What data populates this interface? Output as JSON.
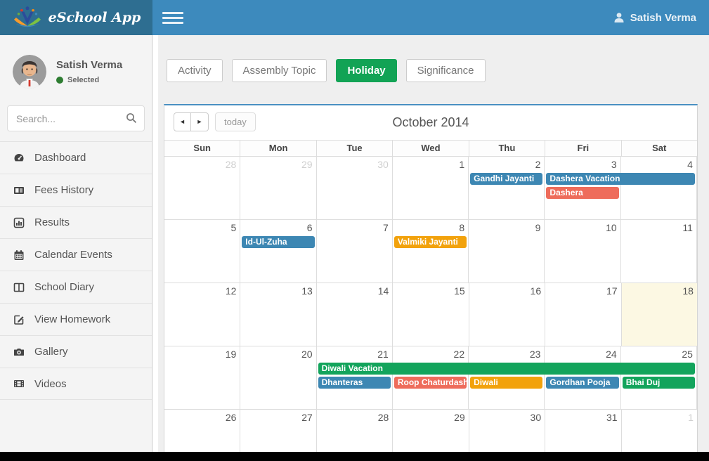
{
  "header": {
    "app_title": "eSchool App",
    "user_name": "Satish Verma"
  },
  "sidebar": {
    "profile": {
      "name": "Satish Verma",
      "status": "Selected"
    },
    "search_placeholder": "Search...",
    "menu": [
      {
        "label": "Dashboard"
      },
      {
        "label": "Fees History"
      },
      {
        "label": "Results"
      },
      {
        "label": "Calendar Events"
      },
      {
        "label": "School Diary"
      },
      {
        "label": "View Homework"
      },
      {
        "label": "Gallery"
      },
      {
        "label": "Videos"
      }
    ]
  },
  "tabs": [
    {
      "label": "Activity",
      "active": false
    },
    {
      "label": "Assembly Topic",
      "active": false
    },
    {
      "label": "Holiday",
      "active": true
    },
    {
      "label": "Significance",
      "active": false
    }
  ],
  "colors": {
    "header_left": "#2E6E91",
    "header_right": "#3D8ABD",
    "active_tab_green": "#12A355",
    "panel_top_border": "#4A90C2",
    "today_cell": "#FCF8E3"
  },
  "calendar": {
    "title": "October 2014",
    "toolbar": {
      "prev_symbol": "◄",
      "next_symbol": "►",
      "today_label": "today"
    },
    "day_headers": [
      "Sun",
      "Mon",
      "Tue",
      "Wed",
      "Thu",
      "Fri",
      "Sat"
    ],
    "event_colors": {
      "blue": "#3D87B3",
      "red": "#EE6C5B",
      "orange": "#F2A20C",
      "green": "#13A45C"
    },
    "today_cell": {
      "week": 2,
      "col": 6,
      "date": "18"
    },
    "weeks": [
      {
        "days": [
          {
            "n": "28",
            "muted": true
          },
          {
            "n": "29",
            "muted": true
          },
          {
            "n": "30",
            "muted": true
          },
          {
            "n": "1"
          },
          {
            "n": "2"
          },
          {
            "n": "3"
          },
          {
            "n": "4"
          }
        ],
        "event_rows": [
          [
            {
              "label": "Gandhi Jayanti",
              "col": 4,
              "span": 1,
              "color": "blue"
            },
            {
              "label": "Dashera Vacation",
              "col": 5,
              "span": 2,
              "color": "blue"
            }
          ],
          [
            {
              "label": "Dashera",
              "col": 5,
              "span": 1,
              "color": "red"
            }
          ]
        ]
      },
      {
        "days": [
          {
            "n": "5"
          },
          {
            "n": "6"
          },
          {
            "n": "7"
          },
          {
            "n": "8"
          },
          {
            "n": "9"
          },
          {
            "n": "10"
          },
          {
            "n": "11"
          }
        ],
        "event_rows": [
          [
            {
              "label": "Id-Ul-Zuha",
              "col": 1,
              "span": 1,
              "color": "blue"
            },
            {
              "label": "Valmiki Jayanti",
              "col": 3,
              "span": 1,
              "color": "orange"
            }
          ]
        ]
      },
      {
        "days": [
          {
            "n": "12"
          },
          {
            "n": "13"
          },
          {
            "n": "14"
          },
          {
            "n": "15"
          },
          {
            "n": "16"
          },
          {
            "n": "17"
          },
          {
            "n": "18"
          }
        ],
        "event_rows": []
      },
      {
        "days": [
          {
            "n": "19"
          },
          {
            "n": "20"
          },
          {
            "n": "21"
          },
          {
            "n": "22"
          },
          {
            "n": "23"
          },
          {
            "n": "24"
          },
          {
            "n": "25"
          }
        ],
        "event_rows": [
          [
            {
              "label": "Diwali Vacation",
              "col": 2,
              "span": 5,
              "color": "green"
            }
          ],
          [
            {
              "label": "Dhanteras",
              "col": 2,
              "span": 1,
              "color": "blue"
            },
            {
              "label": "Roop Chaturdashi",
              "col": 3,
              "span": 1,
              "color": "red"
            },
            {
              "label": "Diwali",
              "col": 4,
              "span": 1,
              "color": "orange"
            },
            {
              "label": "Gordhan Pooja",
              "col": 5,
              "span": 1,
              "color": "blue"
            },
            {
              "label": "Bhai Duj",
              "col": 6,
              "span": 1,
              "color": "green"
            }
          ]
        ]
      },
      {
        "days": [
          {
            "n": "26"
          },
          {
            "n": "27"
          },
          {
            "n": "28"
          },
          {
            "n": "29"
          },
          {
            "n": "30"
          },
          {
            "n": "31"
          },
          {
            "n": "1",
            "muted": true
          }
        ],
        "event_rows": []
      }
    ]
  }
}
